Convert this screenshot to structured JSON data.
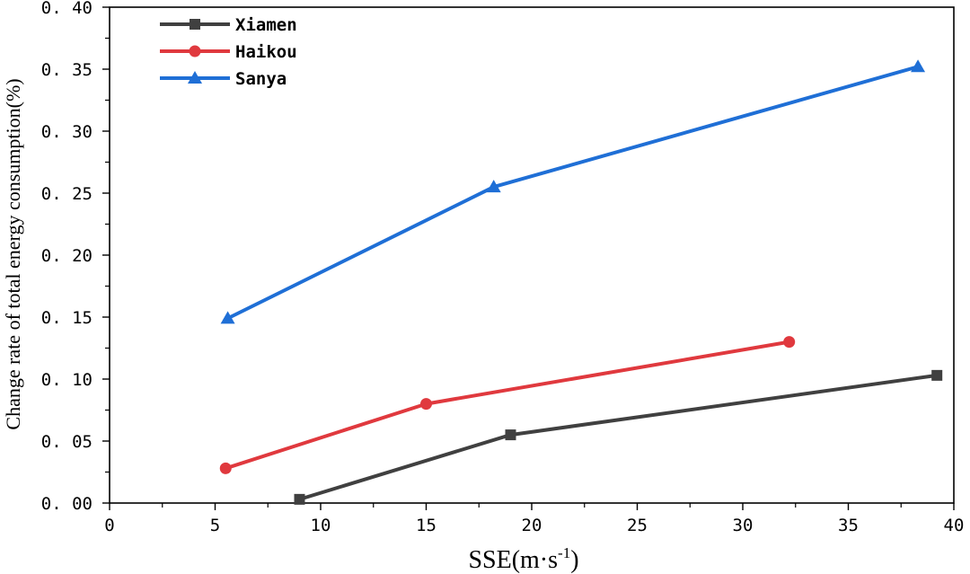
{
  "chart_data": {
    "type": "line",
    "xlabel": "SSE(m·s",
    "xlabel_sup": "-1",
    "xlabel_suffix": ")",
    "ylabel": "Change rate of total energy consumption(%)",
    "xlim": [
      0,
      40
    ],
    "ylim": [
      0,
      0.4
    ],
    "x_ticks": [
      0,
      5,
      10,
      15,
      20,
      25,
      30,
      35,
      40
    ],
    "y_ticks": [
      0.0,
      0.05,
      0.1,
      0.15,
      0.2,
      0.25,
      0.3,
      0.35,
      0.4
    ],
    "x_tick_labels": [
      "0",
      "5",
      "10",
      "15",
      "20",
      "25",
      "30",
      "35",
      "40"
    ],
    "y_tick_labels": [
      "0. 00",
      "0. 05",
      "0. 10",
      "0. 15",
      "0. 20",
      "0. 25",
      "0. 30",
      "0. 35",
      "0. 40"
    ],
    "grid": false,
    "legend_position": "top-left",
    "series": [
      {
        "name": "Xiamen",
        "color": "#404040",
        "marker": "square",
        "points": [
          [
            9.0,
            0.003
          ],
          [
            19.0,
            0.055
          ],
          [
            39.2,
            0.103
          ]
        ]
      },
      {
        "name": "Haikou",
        "color": "#e0393e",
        "marker": "circle",
        "points": [
          [
            5.5,
            0.028
          ],
          [
            15.0,
            0.08
          ],
          [
            32.2,
            0.13
          ]
        ]
      },
      {
        "name": "Sanya",
        "color": "#1f6fd6",
        "marker": "triangle",
        "points": [
          [
            5.6,
            0.149
          ],
          [
            18.2,
            0.255
          ],
          [
            38.3,
            0.352
          ]
        ]
      }
    ]
  }
}
